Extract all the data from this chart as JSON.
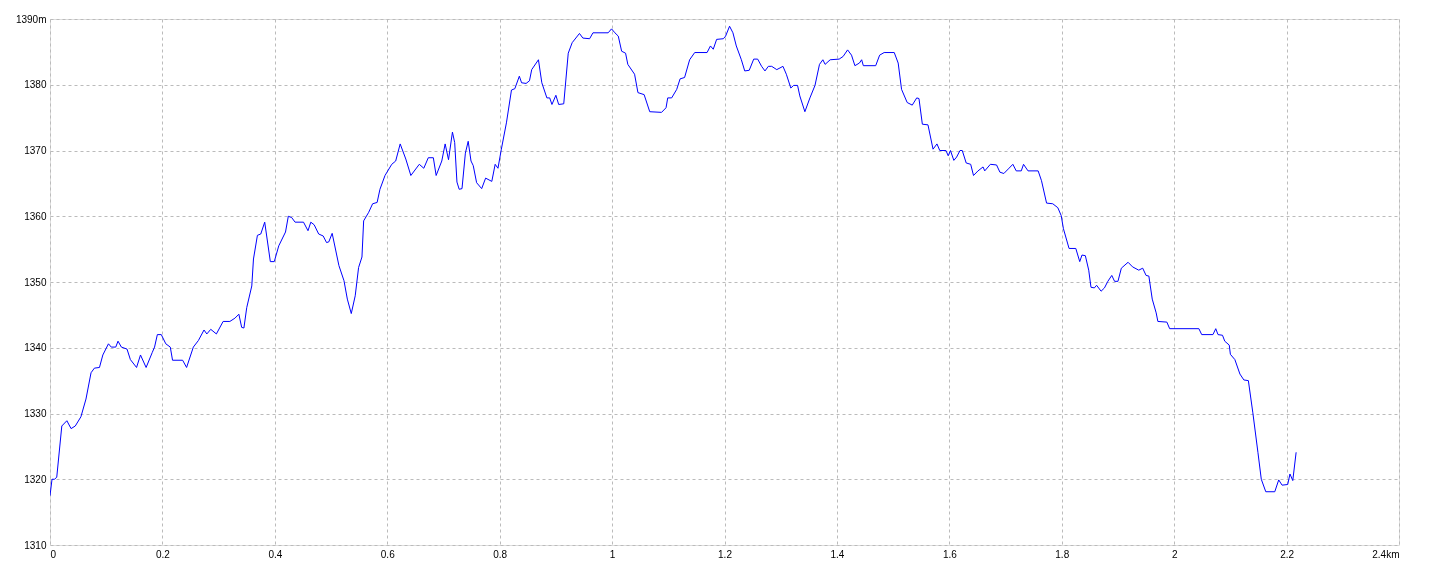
{
  "chart_data": {
    "type": "line",
    "x": [
      0,
      0.0036,
      0.008,
      0.012,
      0.021,
      0.03,
      0.0375,
      0.045,
      0.055,
      0.064,
      0.073,
      0.079,
      0.088,
      0.094,
      0.104,
      0.109,
      0.117,
      0.121,
      0.127,
      0.137,
      0.143,
      0.154,
      0.161,
      0.171,
      0.182,
      0.186,
      0.191,
      0.198,
      0.206,
      0.214,
      0.218,
      0.236,
      0.243,
      0.255,
      0.264,
      0.274,
      0.279,
      0.286,
      0.296,
      0.308,
      0.32,
      0.329,
      0.336,
      0.341,
      0.345,
      0.35,
      0.359,
      0.362,
      0.369,
      0.375,
      0.382,
      0.392,
      0.399,
      0.407,
      0.419,
      0.424,
      0.43,
      0.436,
      0.451,
      0.459,
      0.464,
      0.47,
      0.478,
      0.486,
      0.492,
      0.496,
      0.502,
      0.514,
      0.523,
      0.529,
      0.536,
      0.543,
      0.549,
      0.555,
      0.558,
      0.567,
      0.574,
      0.582,
      0.587,
      0.596,
      0.608,
      0.615,
      0.623,
      0.633,
      0.642,
      0.657,
      0.665,
      0.673,
      0.682,
      0.687,
      0.697,
      0.703,
      0.709,
      0.716,
      0.72,
      0.724,
      0.728,
      0.733,
      0.739,
      0.744,
      0.749,
      0.753,
      0.759,
      0.768,
      0.775,
      0.786,
      0.792,
      0.797,
      0.803,
      0.812,
      0.821,
      0.827,
      0.835,
      0.839,
      0.847,
      0.853,
      0.857,
      0.869,
      0.875,
      0.884,
      0.889,
      0.893,
      0.9,
      0.905,
      0.914,
      0.922,
      0.929,
      0.942,
      0.948,
      0.96,
      0.966,
      0.993,
      0.999,
      1.005,
      1.011,
      1.017,
      1.024,
      1.028,
      1.04,
      1.046,
      1.057,
      1.067,
      1.088,
      1.096,
      1.099,
      1.106,
      1.115,
      1.121,
      1.129,
      1.138,
      1.147,
      1.169,
      1.175,
      1.18,
      1.186,
      1.198,
      1.202,
      1.209,
      1.215,
      1.221,
      1.23,
      1.236,
      1.244,
      1.252,
      1.259,
      1.266,
      1.272,
      1.278,
      1.284,
      1.293,
      1.304,
      1.31,
      1.318,
      1.323,
      1.33,
      1.334,
      1.343,
      1.352,
      1.361,
      1.369,
      1.375,
      1.379,
      1.388,
      1.404,
      1.411,
      1.419,
      1.426,
      1.432,
      1.44,
      1.444,
      1.447,
      1.469,
      1.476,
      1.484,
      1.502,
      1.509,
      1.515,
      1.525,
      1.534,
      1.542,
      1.546,
      1.552,
      1.562,
      1.571,
      1.578,
      1.583,
      1.594,
      1.598,
      1.602,
      1.608,
      1.613,
      1.619,
      1.623,
      1.63,
      1.638,
      1.643,
      1.651,
      1.66,
      1.663,
      1.673,
      1.684,
      1.69,
      1.697,
      1.705,
      1.713,
      1.719,
      1.728,
      1.732,
      1.74,
      1.758,
      1.764,
      1.773,
      1.784,
      1.793,
      1.799,
      1.803,
      1.813,
      1.825,
      1.832,
      1.836,
      1.842,
      1.848,
      1.852,
      1.858,
      1.862,
      1.87,
      1.876,
      1.882,
      1.889,
      1.894,
      1.9,
      1.906,
      1.918,
      1.926,
      1.937,
      1.944,
      1.95,
      1.955,
      1.961,
      1.968,
      1.971,
      1.987,
      1.992,
      2.044,
      2.049,
      2.069,
      2.074,
      2.078,
      2.086,
      2.09,
      2.098,
      2.1,
      2.108,
      2.117,
      2.124,
      2.132,
      2.14,
      2.149,
      2.155,
      2.163,
      2.179,
      2.186,
      2.192,
      2.202,
      2.206,
      2.211,
      2.217
    ],
    "series": [
      {
        "color": "#0000ff",
        "values": [
          1317.5,
          1320,
          1320,
          1320.3,
          1328.1,
          1328.9,
          1327.7,
          1328.1,
          1329.5,
          1332.2,
          1336.2,
          1336.9,
          1337,
          1338.9,
          1340.6,
          1340.1,
          1340.1,
          1341,
          1340.1,
          1339.8,
          1338.2,
          1337,
          1338.9,
          1337,
          1339.3,
          1340.1,
          1342,
          1342,
          1340.6,
          1340.1,
          1338.1,
          1338.1,
          1337,
          1340.1,
          1341.1,
          1342.7,
          1342.1,
          1342.8,
          1342.1,
          1344,
          1344,
          1344.5,
          1345.1,
          1343.1,
          1343,
          1346.1,
          1349.4,
          1353.5,
          1357.1,
          1357.3,
          1359.1,
          1353.1,
          1353.1,
          1355.5,
          1357.6,
          1360,
          1359.8,
          1359.1,
          1359.1,
          1357.8,
          1359.1,
          1358.7,
          1357.3,
          1357,
          1356,
          1356.1,
          1357.4,
          1352.5,
          1350.2,
          1347.4,
          1345.2,
          1347.9,
          1352.2,
          1353.8,
          1359.3,
          1360.6,
          1361.9,
          1362.1,
          1364.1,
          1366.2,
          1367.9,
          1368.4,
          1371,
          1368.7,
          1366.2,
          1367.9,
          1367.3,
          1368.9,
          1368.9,
          1366.2,
          1368.4,
          1371,
          1368.6,
          1372.8,
          1371.2,
          1365.2,
          1364.1,
          1364.2,
          1369.6,
          1371.4,
          1368.4,
          1367.7,
          1365.1,
          1364.2,
          1365.8,
          1365.3,
          1367.9,
          1367.3,
          1370.2,
          1374.2,
          1379.2,
          1379.4,
          1381.3,
          1380.3,
          1380.2,
          1380.6,
          1382.3,
          1383.8,
          1380.3,
          1378,
          1378,
          1377,
          1378.4,
          1377,
          1377.1,
          1384.8,
          1386.4,
          1387.8,
          1387.1,
          1387,
          1387.9,
          1387.9,
          1388.5,
          1387.9,
          1387.4,
          1385.1,
          1384.8,
          1383.1,
          1381.6,
          1378.8,
          1378.5,
          1375.9,
          1375.8,
          1376.5,
          1378,
          1378,
          1379.3,
          1380.9,
          1381.1,
          1383.8,
          1384.9,
          1384.9,
          1385.9,
          1385.4,
          1386.9,
          1387,
          1387.4,
          1388.9,
          1387.9,
          1385.9,
          1383.8,
          1382.1,
          1382.2,
          1383.9,
          1383.9,
          1382.8,
          1382.1,
          1382.8,
          1382.8,
          1382.3,
          1382.8,
          1381.6,
          1379.5,
          1379.9,
          1379.9,
          1378.3,
          1375.9,
          1378,
          1379.9,
          1383.1,
          1383.8,
          1383.1,
          1383.8,
          1383.9,
          1384.3,
          1385.3,
          1384.5,
          1382.9,
          1383.3,
          1383.8,
          1382.9,
          1382.9,
          1384.5,
          1384.9,
          1384.9,
          1383.3,
          1379.3,
          1377.3,
          1376.9,
          1378,
          1377.9,
          1374,
          1373.9,
          1370.2,
          1371,
          1370,
          1370,
          1369.2,
          1370,
          1368.5,
          1369,
          1370,
          1370,
          1368.1,
          1367.9,
          1366.2,
          1366.9,
          1367.5,
          1366.9,
          1367.9,
          1367.8,
          1366.7,
          1366.5,
          1367.2,
          1367.9,
          1366.9,
          1366.9,
          1367.9,
          1366.9,
          1366.9,
          1365.4,
          1362,
          1361.9,
          1361.3,
          1360.1,
          1358.1,
          1355.1,
          1355.1,
          1353.1,
          1354.1,
          1354,
          1351.8,
          1349.2,
          1349.1,
          1349.5,
          1348.6,
          1349.1,
          1350.1,
          1351,
          1350.1,
          1350.1,
          1352.1,
          1353,
          1352.3,
          1351.8,
          1352.1,
          1351,
          1350.9,
          1347.4,
          1345.3,
          1344,
          1343.9,
          1342.9,
          1342.9,
          1342,
          1342,
          1342.9,
          1342,
          1341.9,
          1341,
          1340.4,
          1339,
          1338.2,
          1336,
          1335.1,
          1335,
          1330.1,
          1324.1,
          1320,
          1318.1,
          1318.1,
          1319.9,
          1319.1,
          1319.2,
          1320.8,
          1319.8,
          1324.1
        ]
      }
    ],
    "xlim": [
      0,
      2.4
    ],
    "ylim": [
      1310,
      1390
    ],
    "xticks": [
      0,
      0.2,
      0.4,
      0.6,
      0.8,
      1,
      1.2,
      1.4,
      1.6,
      1.8,
      2,
      2.2,
      {
        "value": 2.4,
        "label": "2.4km"
      }
    ],
    "yticks": [
      1310,
      1320,
      1330,
      1340,
      1350,
      1360,
      1370,
      1380,
      {
        "value": 1390,
        "label": "1390m"
      }
    ],
    "grid": true,
    "line_style": "solid"
  }
}
